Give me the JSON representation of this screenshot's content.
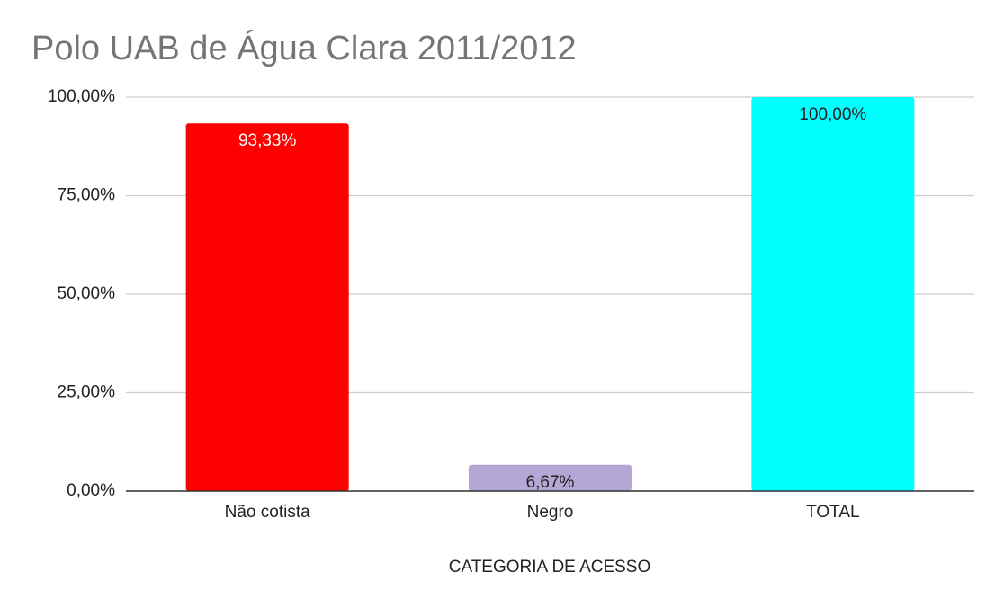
{
  "chart_data": {
    "type": "bar",
    "title": "Polo UAB de Água Clara 2011/2012",
    "x_label": "CATEGORIA DE ACESSO",
    "categories": [
      "Não cotista",
      "Negro",
      "TOTAL"
    ],
    "values": [
      93.33,
      6.67,
      100
    ],
    "value_labels": [
      "93,33%",
      "6,67%",
      "100,00%"
    ],
    "colors": [
      "#ff0000",
      "#b4a7d6",
      "#00ffff"
    ],
    "ylim": [
      0,
      100
    ],
    "yticks": [
      {
        "value": 0,
        "label": "0,00%"
      },
      {
        "value": 25,
        "label": "25,00%"
      },
      {
        "value": 50,
        "label": "50,00%"
      },
      {
        "value": 75,
        "label": "75,00%"
      },
      {
        "value": 100,
        "label": "100,00%"
      }
    ],
    "grid": true
  }
}
